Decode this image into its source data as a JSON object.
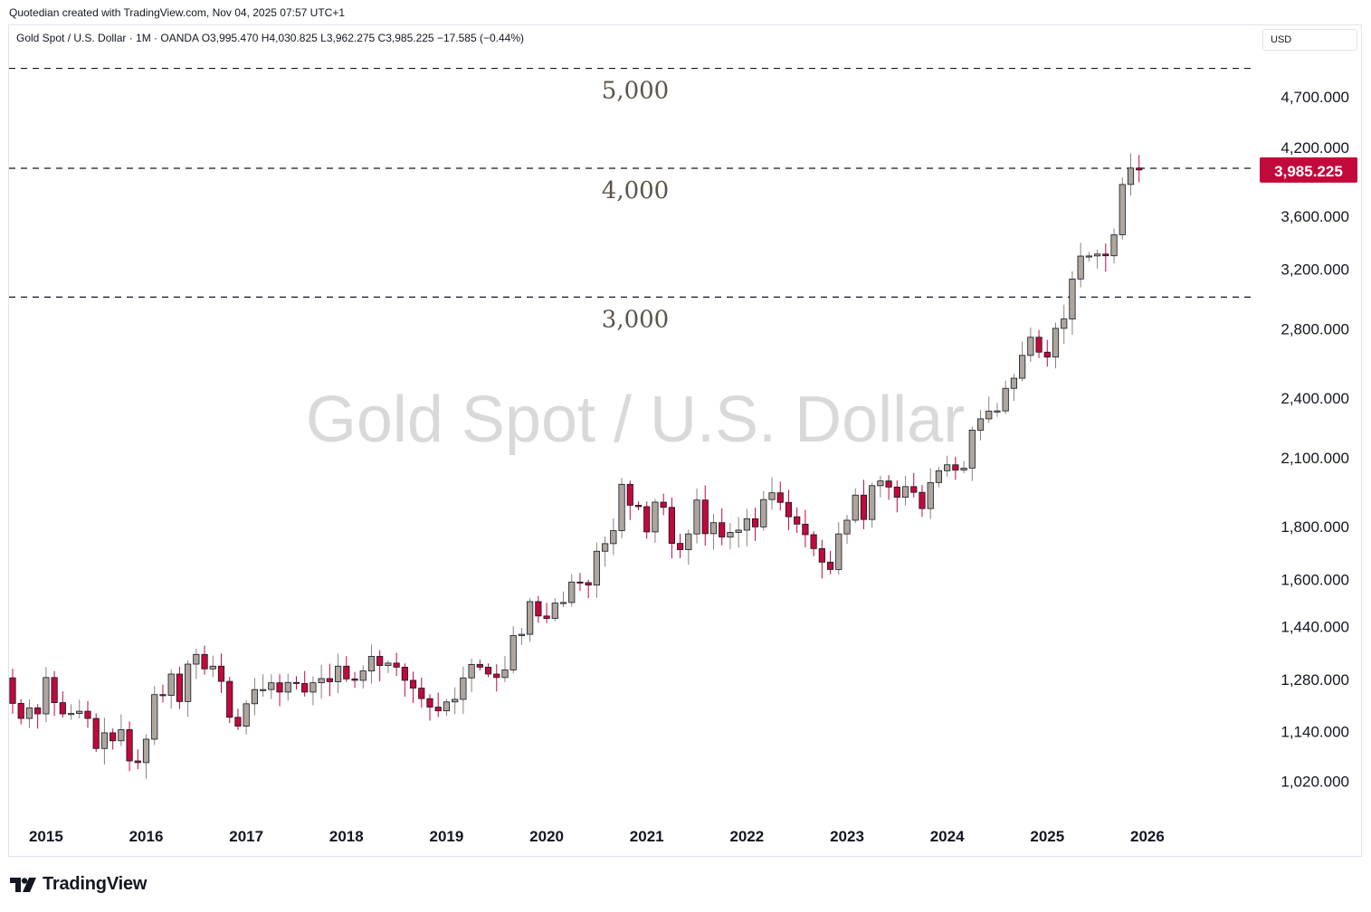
{
  "attribution": "Quotedian created with TradingView.com, Nov 04, 2025 07:57 UTC+1",
  "legend": "Gold Spot / U.S. Dollar · 1M · OANDA  O3,995.470  H4,030.825  L3,962.275  C3,985.225  −17.585 (−0.44%)",
  "currency_label": "USD",
  "watermark": "Gold Spot / U.S. Dollar",
  "footer": {
    "logo_text": "TradingView"
  },
  "colors": {
    "up": "#aea69d",
    "down": "#c2093b",
    "wick": "#131722",
    "price_tag": "#c2093b",
    "level_text": "#5d544a",
    "watermark": "#d9d9d9"
  },
  "chart_data": {
    "type": "candlestick",
    "title": "Gold Spot / U.S. Dollar",
    "interval": "1M",
    "source": "OANDA",
    "y_scale": "log",
    "y_ticks": [
      1020,
      1140,
      1280,
      1440,
      1600,
      1800,
      2100,
      2400,
      2800,
      3200,
      3600,
      4200,
      4700
    ],
    "y_tick_labels": [
      "1,020.000",
      "1,140.000",
      "1,280.000",
      "1,440.000",
      "1,600.000",
      "1,800.000",
      "2,100.000",
      "2,400.000",
      "2,800.000",
      "3,200.000",
      "3,600.000",
      "4,200.000",
      "4,700.000"
    ],
    "x_labels": [
      "2015",
      "2016",
      "2017",
      "2018",
      "2019",
      "2020",
      "2021",
      "2022",
      "2023",
      "2024",
      "2025",
      "2026"
    ],
    "level_lines": [
      {
        "value": 5000,
        "label": "5,000"
      },
      {
        "value": 4000,
        "label": "4,000"
      },
      {
        "value": 3000,
        "label": "3,000"
      }
    ],
    "last_price": {
      "value": 3985.225,
      "label": "3,985.225"
    },
    "series_start": "2014-09",
    "closes": [
      1211,
      1171,
      1199,
      1183,
      1283,
      1213,
      1183,
      1184,
      1190,
      1171,
      1095,
      1134,
      1114,
      1142,
      1065,
      1061,
      1118,
      1235,
      1233,
      1293,
      1216,
      1322,
      1351,
      1308,
      1316,
      1272,
      1174,
      1151,
      1210,
      1249,
      1249,
      1268,
      1242,
      1269,
      1266,
      1242,
      1268,
      1280,
      1271,
      1316,
      1279,
      1275,
      1302,
      1345,
      1318,
      1325,
      1313,
      1275,
      1253,
      1224,
      1201,
      1191,
      1215,
      1222,
      1282,
      1321,
      1313,
      1293,
      1283,
      1305,
      1409,
      1413,
      1520,
      1472,
      1464,
      1515,
      1517,
      1588,
      1586,
      1577,
      1701,
      1730,
      1781,
      1975,
      1885,
      1879,
      1776,
      1898,
      1876,
      1731,
      1707,
      1768,
      1907,
      1769,
      1813,
      1756,
      1774,
      1783,
      1829,
      1796,
      1909,
      1938,
      1897,
      1837,
      1807,
      1765,
      1711,
      1660,
      1633,
      1768,
      1823,
      1928,
      1826,
      1969,
      1990,
      1963,
      1919,
      1965,
      1940,
      1871,
      1983,
      2036,
      2063,
      2039,
      2048,
      2229,
      2286,
      2326,
      2327,
      2447,
      2503,
      2634,
      2743,
      2653,
      2624,
      2798,
      2857,
      3124,
      3288,
      3289,
      3303,
      3290,
      3448,
      3858,
      4002,
      3985
    ]
  }
}
